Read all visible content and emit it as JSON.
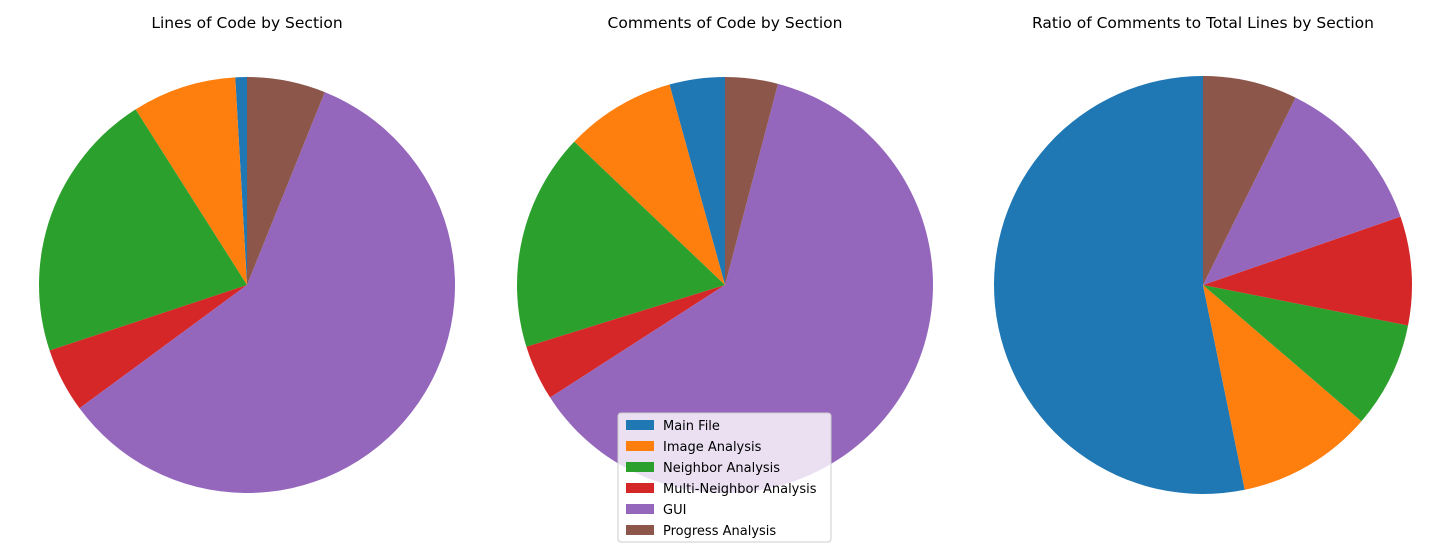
{
  "figure": {
    "legend_placement": "lower-center"
  },
  "chart_data": [
    {
      "type": "pie",
      "title": "Lines of Code by Section",
      "categories": [
        "Main File",
        "Image Analysis",
        "Neighbor Analysis",
        "Multi-Neighbor Analysis",
        "GUI",
        "Progress Analysis"
      ],
      "values": [
        0.9,
        8.1,
        21.1,
        5.0,
        58.8,
        6.1
      ],
      "colors": [
        "#1f77b4",
        "#ff7f0e",
        "#2ca02c",
        "#d62728",
        "#9467bd",
        "#8c564b"
      ],
      "start_angle": 90,
      "direction": "counterclockwise"
    },
    {
      "type": "pie",
      "title": "Comments of Code by Section",
      "categories": [
        "Main File",
        "Image Analysis",
        "Neighbor Analysis",
        "Multi-Neighbor Analysis",
        "GUI",
        "Progress Analysis"
      ],
      "values": [
        4.3,
        8.6,
        16.9,
        4.3,
        61.8,
        4.1
      ],
      "colors": [
        "#1f77b4",
        "#ff7f0e",
        "#2ca02c",
        "#d62728",
        "#9467bd",
        "#8c564b"
      ],
      "start_angle": 90,
      "direction": "counterclockwise"
    },
    {
      "type": "pie",
      "title": "Ratio of Comments to Total Lines by Section",
      "categories": [
        "Main File",
        "Image Analysis",
        "Neighbor Analysis",
        "Multi-Neighbor Analysis",
        "GUI",
        "Progress Analysis"
      ],
      "values": [
        53.2,
        10.5,
        8.2,
        8.4,
        12.4,
        7.3
      ],
      "colors": [
        "#1f77b4",
        "#ff7f0e",
        "#2ca02c",
        "#d62728",
        "#9467bd",
        "#8c564b"
      ],
      "start_angle": 90,
      "direction": "counterclockwise"
    }
  ],
  "legend": {
    "entries": [
      {
        "label": "Main File",
        "color": "#1f77b4"
      },
      {
        "label": "Image Analysis",
        "color": "#ff7f0e"
      },
      {
        "label": "Neighbor Analysis",
        "color": "#2ca02c"
      },
      {
        "label": "Multi-Neighbor Analysis",
        "color": "#d62728"
      },
      {
        "label": "GUI",
        "color": "#9467bd"
      },
      {
        "label": "Progress Analysis",
        "color": "#8c564b"
      }
    ]
  }
}
